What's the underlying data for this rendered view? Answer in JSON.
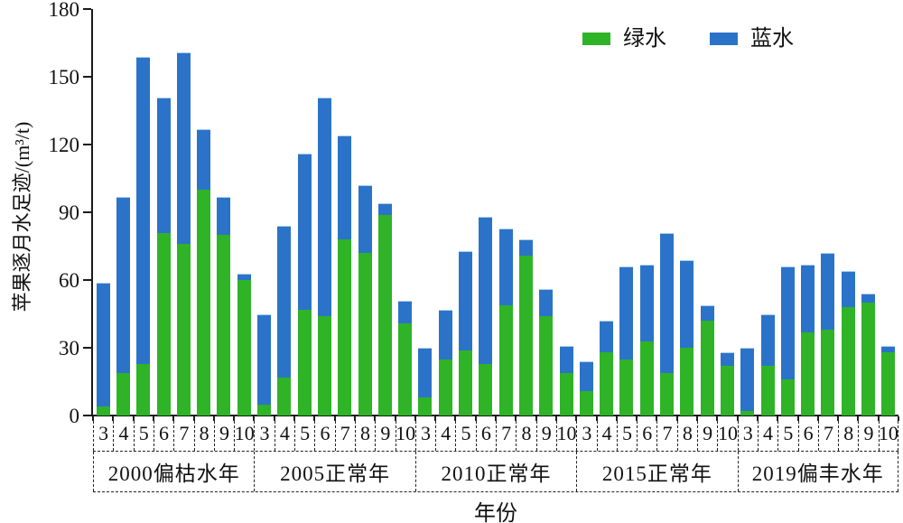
{
  "chart_data": {
    "type": "bar",
    "stacked": true,
    "ylabel": "苹果逐月水足迹/(m³/t)",
    "xlabel": "年份",
    "ylim": [
      0,
      180
    ],
    "yticks": [
      0,
      30,
      60,
      90,
      120,
      150,
      180
    ],
    "grid": false,
    "legend_position": "top-right",
    "legend": [
      {
        "name": "绿水",
        "color": "#2FB327"
      },
      {
        "name": "蓝水",
        "color": "#2B73C9"
      }
    ],
    "month_labels": [
      "3",
      "4",
      "5",
      "6",
      "7",
      "8",
      "9",
      "10"
    ],
    "groups": [
      {
        "label": "2000偏枯水年",
        "series": [
          {
            "name": "绿水",
            "values": [
              4,
              19,
              23,
              81,
              76,
              100,
              80,
              60
            ]
          },
          {
            "name": "蓝水",
            "values": [
              55,
              78,
              136,
              60,
              85,
              27,
              17,
              3
            ]
          }
        ]
      },
      {
        "label": "2005正常年",
        "series": [
          {
            "name": "绿水",
            "values": [
              5,
              17,
              47,
              44,
              78,
              72,
              89,
              41
            ]
          },
          {
            "name": "蓝水",
            "values": [
              40,
              67,
              69,
              97,
              46,
              30,
              5,
              10
            ]
          }
        ]
      },
      {
        "label": "2010正常年",
        "series": [
          {
            "name": "绿水",
            "values": [
              8,
              25,
              29,
              23,
              49,
              71,
              44,
              19
            ]
          },
          {
            "name": "蓝水",
            "values": [
              22,
              22,
              44,
              65,
              34,
              7,
              12,
              12
            ]
          }
        ]
      },
      {
        "label": "2015正常年",
        "series": [
          {
            "name": "绿水",
            "values": [
              11,
              28,
              25,
              33,
              19,
              30,
              42,
              22
            ]
          },
          {
            "name": "蓝水",
            "values": [
              13,
              14,
              41,
              34,
              62,
              39,
              7,
              6
            ]
          }
        ]
      },
      {
        "label": "2019偏丰水年",
        "series": [
          {
            "name": "绿水",
            "values": [
              2,
              22,
              16,
              37,
              38,
              48,
              50,
              28
            ]
          },
          {
            "name": "蓝水",
            "values": [
              28,
              23,
              50,
              30,
              34,
              16,
              4,
              3
            ]
          }
        ]
      }
    ]
  }
}
